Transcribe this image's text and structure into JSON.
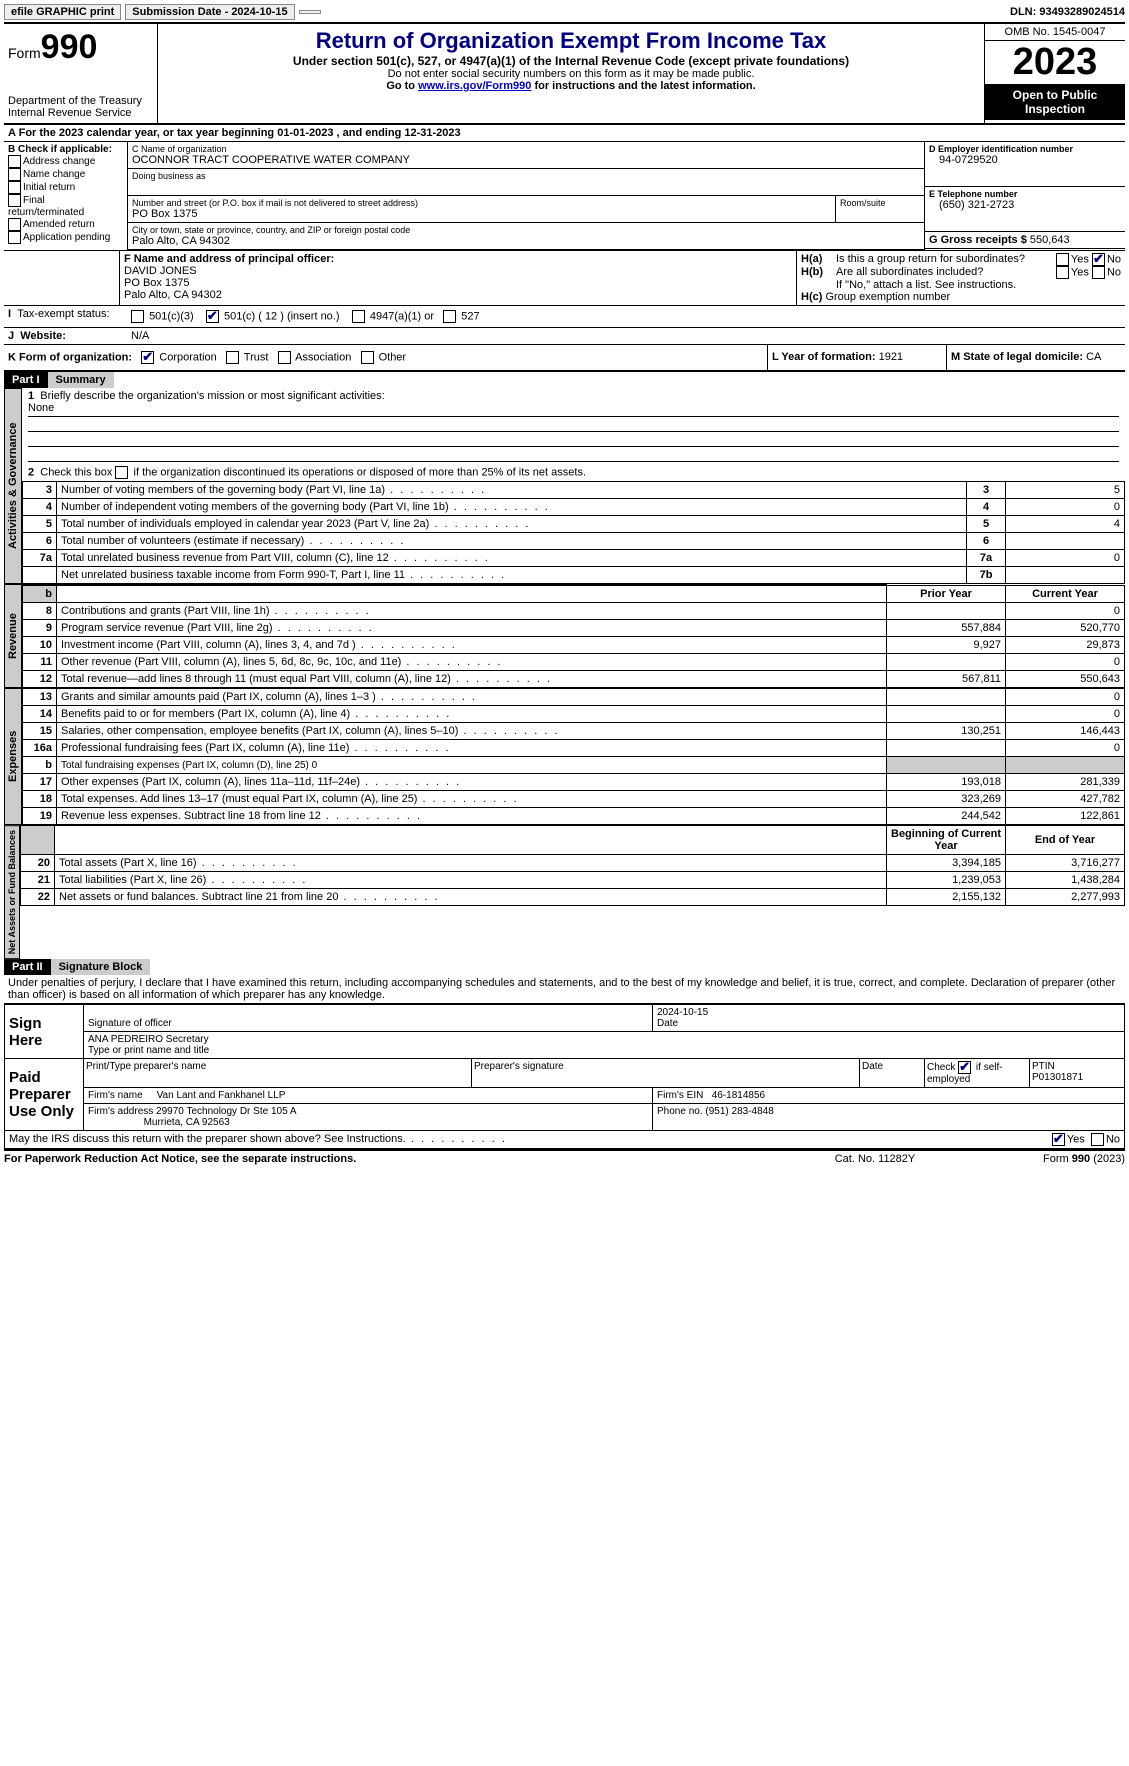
{
  "topbar": {
    "efile": "efile GRAPHIC print",
    "submission": "Submission Date - 2024-10-15",
    "dln": "DLN: 93493289024514"
  },
  "header": {
    "form_label": "Form",
    "form_no": "990",
    "dept": "Department of the Treasury",
    "irs": "Internal Revenue Service",
    "title": "Return of Organization Exempt From Income Tax",
    "sub1": "Under section 501(c), 527, or 4947(a)(1) of the Internal Revenue Code (except private foundations)",
    "sub2": "Do not enter social security numbers on this form as it may be made public.",
    "sub3_pre": "Go to ",
    "sub3_link": "www.irs.gov/Form990",
    "sub3_post": " for instructions and the latest information.",
    "omb": "OMB No. 1545-0047",
    "year": "2023",
    "inspect": "Open to Public Inspection"
  },
  "a": {
    "line": "For the 2023 calendar year, or tax year beginning 01-01-2023   , and ending 12-31-2023"
  },
  "b": {
    "title": "B Check if applicable:",
    "opts": [
      "Address change",
      "Name change",
      "Initial return",
      "Final return/terminated",
      "Amended return",
      "Application pending"
    ]
  },
  "c": {
    "label": "C Name of organization",
    "name": "OCONNOR TRACT COOPERATIVE WATER COMPANY",
    "dba_label": "Doing business as",
    "addr_label": "Number and street (or P.O. box if mail is not delivered to street address)",
    "room_label": "Room/suite",
    "addr": "PO Box 1375",
    "city_label": "City or town, state or province, country, and ZIP or foreign postal code",
    "city": "Palo Alto, CA  94302"
  },
  "d": {
    "label": "D Employer identification number",
    "val": "94-0729520"
  },
  "e": {
    "label": "E Telephone number",
    "val": "(650) 321-2723"
  },
  "g": {
    "label": "G Gross receipts $",
    "val": "550,643"
  },
  "f": {
    "label": "F  Name and address of principal officer:",
    "name": "DAVID JONES",
    "addr1": "PO Box 1375",
    "addr2": "Palo Alto, CA  94302"
  },
  "h": {
    "a_label": "Is this a group return for subordinates?",
    "b_label": "Are all subordinates included?",
    "b_note": "If \"No,\" attach a list. See instructions.",
    "c_label": "Group exemption number",
    "yes": "Yes",
    "no": "No"
  },
  "i": {
    "label": "Tax-exempt status:",
    "c3": "501(c)(3)",
    "c": "501(c) ( 12 ) (insert no.)",
    "a4947": "4947(a)(1) or",
    "s527": "527"
  },
  "j": {
    "label": "Website:",
    "val": "N/A"
  },
  "k": {
    "label": "K Form of organization:",
    "corp": "Corporation",
    "trust": "Trust",
    "assoc": "Association",
    "other": "Other"
  },
  "l": {
    "label": "L Year of formation:",
    "val": "1921"
  },
  "m": {
    "label": "M State of legal domicile:",
    "val": "CA"
  },
  "part1": {
    "hdr": "Part I",
    "title": "Summary",
    "q1": "Briefly describe the organization's mission or most significant activities:",
    "q1v": "None",
    "q2": "Check this box ",
    "q2b": " if the organization discontinued its operations or disposed of more than 25% of its net assets.",
    "rows": [
      {
        "n": "3",
        "t": "Number of voting members of the governing body (Part VI, line 1a)",
        "c": "3",
        "v": "5"
      },
      {
        "n": "4",
        "t": "Number of independent voting members of the governing body (Part VI, line 1b)",
        "c": "4",
        "v": "0"
      },
      {
        "n": "5",
        "t": "Total number of individuals employed in calendar year 2023 (Part V, line 2a)",
        "c": "5",
        "v": "4"
      },
      {
        "n": "6",
        "t": "Total number of volunteers (estimate if necessary)",
        "c": "6",
        "v": ""
      },
      {
        "n": "7a",
        "t": "Total unrelated business revenue from Part VIII, column (C), line 12",
        "c": "7a",
        "v": "0"
      },
      {
        "n": "",
        "t": "Net unrelated business taxable income from Form 990-T, Part I, line 11",
        "c": "7b",
        "v": ""
      }
    ],
    "col_prior": "Prior Year",
    "col_curr": "Current Year",
    "rev": [
      {
        "n": "8",
        "t": "Contributions and grants (Part VIII, line 1h)",
        "p": "",
        "c": "0"
      },
      {
        "n": "9",
        "t": "Program service revenue (Part VIII, line 2g)",
        "p": "557,884",
        "c": "520,770"
      },
      {
        "n": "10",
        "t": "Investment income (Part VIII, column (A), lines 3, 4, and 7d )",
        "p": "9,927",
        "c": "29,873"
      },
      {
        "n": "11",
        "t": "Other revenue (Part VIII, column (A), lines 5, 6d, 8c, 9c, 10c, and 11e)",
        "p": "",
        "c": "0"
      },
      {
        "n": "12",
        "t": "Total revenue—add lines 8 through 11 (must equal Part VIII, column (A), line 12)",
        "p": "567,811",
        "c": "550,643"
      }
    ],
    "exp": [
      {
        "n": "13",
        "t": "Grants and similar amounts paid (Part IX, column (A), lines 1–3 )",
        "p": "",
        "c": "0"
      },
      {
        "n": "14",
        "t": "Benefits paid to or for members (Part IX, column (A), line 4)",
        "p": "",
        "c": "0"
      },
      {
        "n": "15",
        "t": "Salaries, other compensation, employee benefits (Part IX, column (A), lines 5–10)",
        "p": "130,251",
        "c": "146,443"
      },
      {
        "n": "16a",
        "t": "Professional fundraising fees (Part IX, column (A), line 11e)",
        "p": "",
        "c": "0"
      },
      {
        "n": "b",
        "t": "Total fundraising expenses (Part IX, column (D), line 25) 0",
        "p": "grey",
        "c": "grey"
      },
      {
        "n": "17",
        "t": "Other expenses (Part IX, column (A), lines 11a–11d, 11f–24e)",
        "p": "193,018",
        "c": "281,339"
      },
      {
        "n": "18",
        "t": "Total expenses. Add lines 13–17 (must equal Part IX, column (A), line 25)",
        "p": "323,269",
        "c": "427,782"
      },
      {
        "n": "19",
        "t": "Revenue less expenses. Subtract line 18 from line 12",
        "p": "244,542",
        "c": "122,861"
      }
    ],
    "na_h1": "Beginning of Current Year",
    "na_h2": "End of Year",
    "na": [
      {
        "n": "20",
        "t": "Total assets (Part X, line 16)",
        "p": "3,394,185",
        "c": "3,716,277"
      },
      {
        "n": "21",
        "t": "Total liabilities (Part X, line 26)",
        "p": "1,239,053",
        "c": "1,438,284"
      },
      {
        "n": "22",
        "t": "Net assets or fund balances. Subtract line 21 from line 20",
        "p": "2,155,132",
        "c": "2,277,993"
      }
    ],
    "vlabels": {
      "gov": "Activities & Governance",
      "rev": "Revenue",
      "exp": "Expenses",
      "na": "Net Assets or Fund Balances"
    }
  },
  "part2": {
    "hdr": "Part II",
    "title": "Signature Block",
    "perjury": "Under penalties of perjury, I declare that I have examined this return, including accompanying schedules and statements, and to the best of my knowledge and belief, it is true, correct, and complete. Declaration of preparer (other than officer) is based on all information of which preparer has any knowledge.",
    "sign_here": "Sign Here",
    "sig_officer": "Signature of officer",
    "sig_date": "2024-10-15",
    "date_label": "Date",
    "officer_name": "ANA PEDREIRO  Secretary",
    "type_label": "Type or print name and title",
    "paid": "Paid Preparer Use Only",
    "prep_name_label": "Print/Type preparer's name",
    "prep_sig_label": "Preparer's signature",
    "self_emp": "Check",
    "self_emp2": "if self-employed",
    "ptin_label": "PTIN",
    "ptin": "P01301871",
    "firm_name_label": "Firm's name",
    "firm_name": "Van Lant and Fankhanel LLP",
    "firm_ein_label": "Firm's EIN",
    "firm_ein": "46-1814856",
    "firm_addr_label": "Firm's address",
    "firm_addr1": "29970 Technology Dr Ste 105 A",
    "firm_addr2": "Murrieta, CA  92563",
    "phone_label": "Phone no.",
    "phone": "(951) 283-4848",
    "discuss": "May the IRS discuss this return with the preparer shown above? See Instructions.",
    "yes": "Yes",
    "no": "No"
  },
  "footer": {
    "left": "For Paperwork Reduction Act Notice, see the separate instructions.",
    "mid": "Cat. No. 11282Y",
    "right_pre": "Form ",
    "right_b": "990",
    "right_post": " (2023)"
  }
}
